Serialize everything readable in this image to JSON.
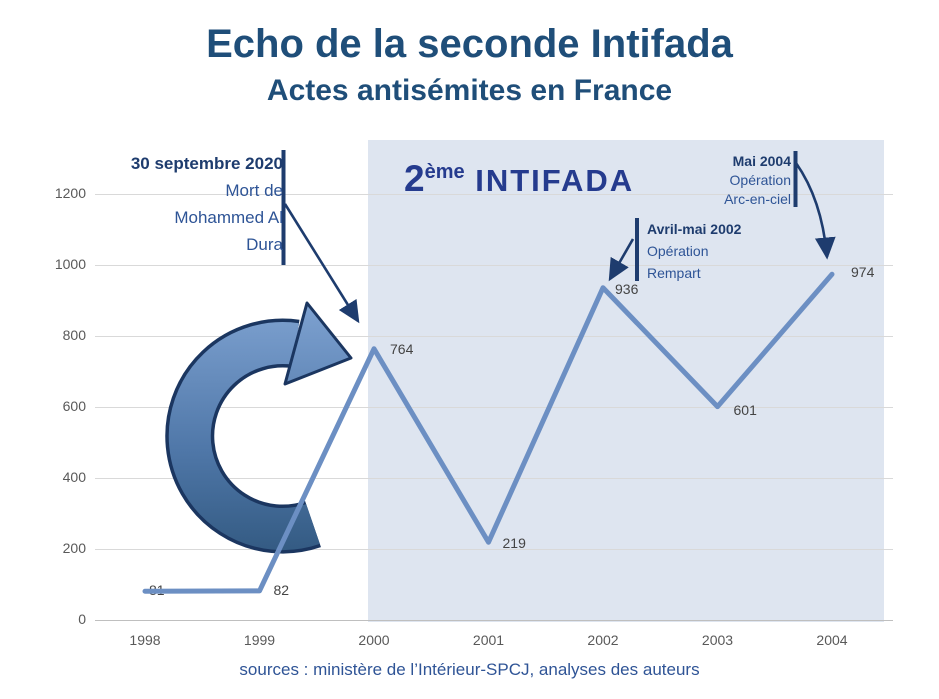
{
  "title": "Echo de la seconde Intifada",
  "subtitle": "Actes antisémites en France",
  "source": "sources : ministère de l’Intérieur-SPCJ, analyses des auteurs",
  "region_label": {
    "prefix": "2",
    "sup": "ème",
    "word": " INTIFADA"
  },
  "annotations": [
    {
      "lines": [
        "30 septembre 2020",
        "Mort de",
        "Mohammed Al",
        "Dura"
      ]
    },
    {
      "lines": [
        "Avril-mai 2002",
        "Opération",
        "Rempart"
      ]
    },
    {
      "lines": [
        "Mai 2004",
        "Opération",
        "Arc-en-ciel"
      ]
    }
  ],
  "chart_data": {
    "type": "line",
    "categories": [
      "1998",
      "1999",
      "2000",
      "2001",
      "2002",
      "2003",
      "2004"
    ],
    "values": [
      81,
      82,
      764,
      219,
      936,
      601,
      974
    ],
    "series_name": "Actes antisémites en France",
    "title": "Echo de la seconde Intifada",
    "xlabel": "",
    "ylabel": "",
    "ylim": [
      0,
      1200
    ],
    "yticks": [
      0,
      200,
      400,
      600,
      800,
      1000,
      1200
    ],
    "grid": true,
    "legend": "none",
    "shaded_region": {
      "from": "2000",
      "to": "2004",
      "label": "2ème INTIFADA"
    }
  },
  "colors": {
    "title": "#1F4E79",
    "subtitle": "#1F4E79",
    "navy": "#1E3C6E",
    "annotation_text": "#2E5496",
    "intifada_label": "#253B8E",
    "line": "#6C8FC3",
    "shading": "#DEE5F0",
    "grid": "#D9D9D9",
    "axis_line": "#BFBFBF",
    "tick_text": "#595959",
    "data_label": "#444444",
    "source_text": "#2F5496",
    "swoosh_light": "#7CA0CF",
    "swoosh_dark": "#30577E",
    "swoosh_outline": "#1B3660"
  }
}
